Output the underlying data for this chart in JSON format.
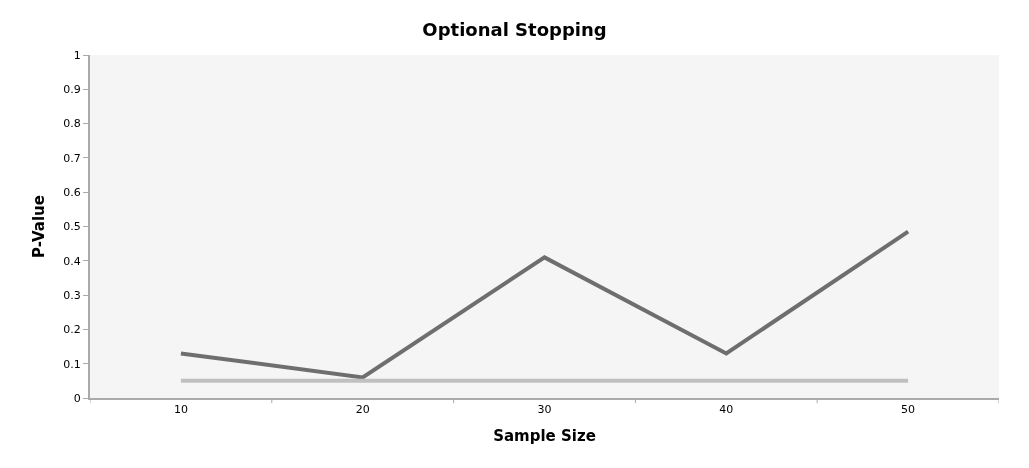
{
  "chart_data": {
    "type": "line",
    "title": "Optional Stopping",
    "xlabel": "Sample Size",
    "ylabel": "P-Value",
    "categories": [
      "10",
      "20",
      "30",
      "40",
      "50"
    ],
    "series": [
      {
        "color": "#6e6e6e",
        "values": [
          0.13,
          0.06,
          0.41,
          0.13,
          0.485
        ]
      },
      {
        "color": "#c0c0c0",
        "values": [
          0.05,
          0.05,
          0.05,
          0.05,
          0.05
        ]
      }
    ],
    "ylim": [
      0,
      1
    ],
    "yticks": [
      0,
      0.1,
      0.2,
      0.3,
      0.4,
      0.5,
      0.6,
      0.7,
      0.8,
      0.9,
      1
    ],
    "grid": false,
    "marker": "none",
    "line_style": "solid"
  }
}
